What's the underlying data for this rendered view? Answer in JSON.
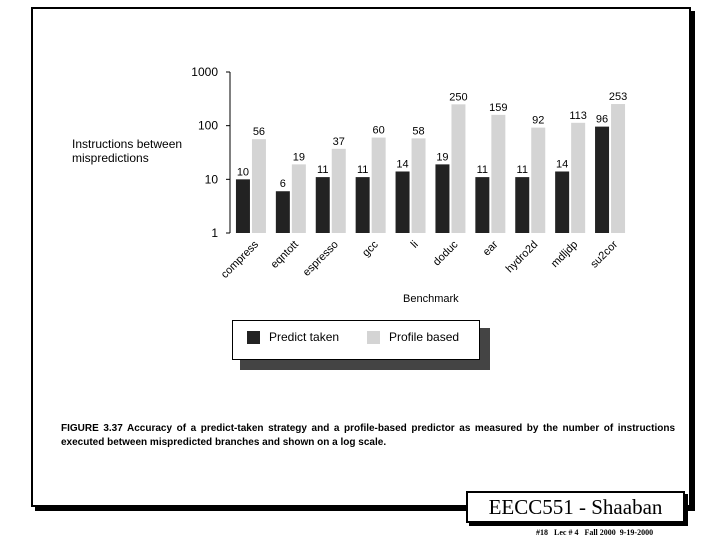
{
  "chart_data": {
    "type": "bar",
    "scale": "log",
    "ylim": [
      1,
      1000
    ],
    "yticks": [
      "1000",
      "100",
      "10",
      "1"
    ],
    "ylabel": "Instructions between\nmispredictions",
    "xlabel": "Benchmark",
    "categories": [
      "compress",
      "eqntott",
      "espresso",
      "gcc",
      "li",
      "doduc",
      "ear",
      "hydro2d",
      "mdljdp",
      "su2cor"
    ],
    "series": [
      {
        "name": "Predict taken",
        "values": [
          10,
          6,
          11,
          11,
          14,
          19,
          11,
          11,
          14,
          96
        ],
        "color": "#222222"
      },
      {
        "name": "Profile based",
        "values": [
          56,
          19,
          37,
          60,
          58,
          250,
          159,
          92,
          113,
          253
        ],
        "color": "#d4d4d4"
      }
    ],
    "legend_position": "bottom"
  },
  "caption": "FIGURE 3.37  Accuracy of a predict-taken strategy and a profile-based predictor as measured by the number of instructions executed between mispredicted branches and shown on a log scale.",
  "course_title": "EECC551 - Shaaban",
  "footer": "#18   Lec # 4   Fall 2000  9-19-2000"
}
